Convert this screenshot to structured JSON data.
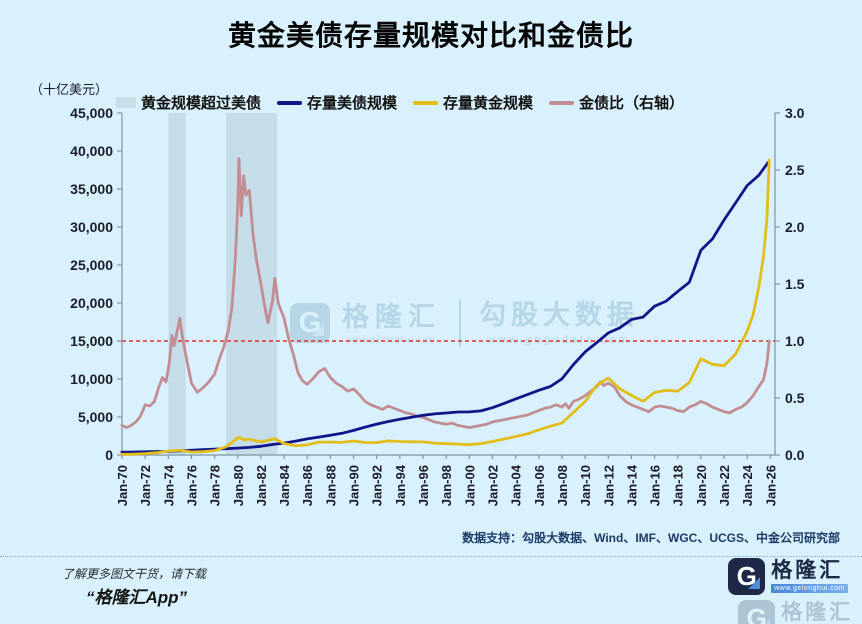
{
  "title": "黄金美债存量规模对比和金债比",
  "legend": [
    {
      "label": "黄金规模超过美债",
      "type": "band",
      "color": "#cbdde7"
    },
    {
      "label": "存量美债规模",
      "type": "line",
      "color": "#14148a"
    },
    {
      "label": "存量黄金规模",
      "type": "line",
      "color": "#e3bd1a"
    },
    {
      "label": "金债比（右轴）",
      "type": "line",
      "color": "#c18d92"
    }
  ],
  "watermark": {
    "brand": "格隆汇",
    "brand_url": "www.gelonghui.com",
    "partner": "勾股大数据",
    "partner_url": "www.gogudata.com"
  },
  "footer": {
    "data_support": "数据支持：勾股大数据、Wind、IMF、WGC、UCGS、中金公司研究部",
    "promo_line1": "了解更多图文干货，请下载",
    "promo_line2": "“格隆汇App”",
    "logo_brand": "格隆汇",
    "logo_url": "www.gelonghui.com"
  },
  "colors": {
    "background": "#d8f1fc",
    "us_debt_line": "#14148a",
    "gold_line": "#e3bd1a",
    "ratio_line": "#c18d92",
    "reference_line": "#e2302e",
    "shaded_band": "rgba(148,176,190,0.3)",
    "axis": "#7d95a3"
  },
  "chart_data": {
    "type": "line",
    "title": "黄金美债存量规模对比和金债比",
    "left_axis": {
      "label": "（十亿美元）",
      "min": 0,
      "max": 45000,
      "step": 5000,
      "ticks": [
        "0",
        "5,000",
        "10,000",
        "15,000",
        "20,000",
        "25,000",
        "30,000",
        "35,000",
        "40,000",
        "45,000"
      ]
    },
    "right_axis": {
      "label": "金债比",
      "min": 0.0,
      "max": 3.0,
      "step": 0.5,
      "ticks": [
        "0.0",
        "0.5",
        "1.0",
        "1.5",
        "2.0",
        "2.5",
        "3.0"
      ]
    },
    "x_axis": {
      "start_year": 1970,
      "end_year": 2026,
      "tick_interval_years": 2,
      "ticks": [
        "Jan-70",
        "Jan-72",
        "Jan-74",
        "Jan-76",
        "Jan-78",
        "Jan-80",
        "Jan-82",
        "Jan-84",
        "Jan-86",
        "Jan-88",
        "Jan-90",
        "Jan-92",
        "Jan-94",
        "Jan-96",
        "Jan-98",
        "Jan-00",
        "Jan-02",
        "Jan-04",
        "Jan-06",
        "Jan-08",
        "Jan-10",
        "Jan-12",
        "Jan-14",
        "Jan-16",
        "Jan-18",
        "Jan-20",
        "Jan-22",
        "Jan-24",
        "Jan-26"
      ]
    },
    "reference_line": {
      "axis": "right",
      "value": 1.0,
      "color": "#e2302e",
      "style": "dashed"
    },
    "shaded_bands": {
      "label": "黄金规模超过美债",
      "color": "rgba(148,176,190,0.3)",
      "ranges": [
        [
          1974.0,
          1975.5
        ],
        [
          1979.0,
          1983.4
        ]
      ]
    },
    "grid": false,
    "legend_position": "top",
    "series": [
      {
        "name": "存量美债规模",
        "axis": "left",
        "color": "#14148a",
        "unit": "十亿美元",
        "points": [
          [
            1970,
            371
          ],
          [
            1971,
            398
          ],
          [
            1972,
            427
          ],
          [
            1973,
            458
          ],
          [
            1974,
            475
          ],
          [
            1975,
            533
          ],
          [
            1976,
            620
          ],
          [
            1977,
            699
          ],
          [
            1978,
            772
          ],
          [
            1979,
            827
          ],
          [
            1980,
            908
          ],
          [
            1981,
            998
          ],
          [
            1982,
            1142
          ],
          [
            1983,
            1377
          ],
          [
            1984,
            1572
          ],
          [
            1985,
            1823
          ],
          [
            1986,
            2125
          ],
          [
            1987,
            2350
          ],
          [
            1988,
            2602
          ],
          [
            1989,
            2857
          ],
          [
            1990,
            3233
          ],
          [
            1991,
            3665
          ],
          [
            1992,
            4065
          ],
          [
            1993,
            4411
          ],
          [
            1994,
            4693
          ],
          [
            1995,
            4974
          ],
          [
            1996,
            5225
          ],
          [
            1997,
            5413
          ],
          [
            1998,
            5526
          ],
          [
            1999,
            5656
          ],
          [
            2000,
            5674
          ],
          [
            2001,
            5807
          ],
          [
            2002,
            6228
          ],
          [
            2003,
            6783
          ],
          [
            2004,
            7379
          ],
          [
            2005,
            7933
          ],
          [
            2006,
            8507
          ],
          [
            2007,
            9008
          ],
          [
            2008,
            10025
          ],
          [
            2009,
            11910
          ],
          [
            2010,
            13562
          ],
          [
            2011,
            14790
          ],
          [
            2012,
            16066
          ],
          [
            2013,
            16738
          ],
          [
            2014,
            17824
          ],
          [
            2015,
            18151
          ],
          [
            2016,
            19573
          ],
          [
            2017,
            20245
          ],
          [
            2018,
            21516
          ],
          [
            2019,
            22719
          ],
          [
            2020,
            26945
          ],
          [
            2021,
            28429
          ],
          [
            2022,
            30929
          ],
          [
            2023,
            33167
          ],
          [
            2024,
            35465
          ],
          [
            2025,
            36800
          ],
          [
            2025.8,
            38500
          ]
        ]
      },
      {
        "name": "存量黄金规模",
        "axis": "left",
        "color": "#e3bd1a",
        "unit": "十亿美元",
        "points": [
          [
            1970,
            95
          ],
          [
            1971,
            110
          ],
          [
            1972,
            185
          ],
          [
            1973,
            300
          ],
          [
            1974,
            520
          ],
          [
            1975,
            620
          ],
          [
            1976,
            390
          ],
          [
            1977,
            430
          ],
          [
            1978,
            580
          ],
          [
            1979,
            1080
          ],
          [
            1980.1,
            2360
          ],
          [
            1980.5,
            2000
          ],
          [
            1981,
            2080
          ],
          [
            1982,
            1710
          ],
          [
            1983.2,
            2150
          ],
          [
            1984,
            1500
          ],
          [
            1985,
            1230
          ],
          [
            1986,
            1330
          ],
          [
            1987,
            1700
          ],
          [
            1988,
            1700
          ],
          [
            1989,
            1660
          ],
          [
            1990,
            1840
          ],
          [
            1991,
            1650
          ],
          [
            1992,
            1630
          ],
          [
            1993,
            1850
          ],
          [
            1994,
            1780
          ],
          [
            1995,
            1740
          ],
          [
            1996,
            1720
          ],
          [
            1997,
            1570
          ],
          [
            1998,
            1490
          ],
          [
            1999,
            1440
          ],
          [
            2000,
            1360
          ],
          [
            2001,
            1500
          ],
          [
            2002,
            1780
          ],
          [
            2003,
            2100
          ],
          [
            2004,
            2440
          ],
          [
            2005,
            2780
          ],
          [
            2006,
            3320
          ],
          [
            2007,
            3790
          ],
          [
            2008,
            4210
          ],
          [
            2009,
            5600
          ],
          [
            2010,
            7050
          ],
          [
            2011,
            9170
          ],
          [
            2012,
            10120
          ],
          [
            2013,
            8700
          ],
          [
            2014,
            7840
          ],
          [
            2015,
            7080
          ],
          [
            2016,
            8220
          ],
          [
            2017,
            8500
          ],
          [
            2018,
            8390
          ],
          [
            2019,
            9540
          ],
          [
            2020,
            12660
          ],
          [
            2021,
            11940
          ],
          [
            2022,
            11750
          ],
          [
            2023,
            13270
          ],
          [
            2024,
            16300
          ],
          [
            2024.5,
            18400
          ],
          [
            2025,
            22100
          ],
          [
            2025.4,
            26000
          ],
          [
            2025.7,
            31000
          ],
          [
            2025.9,
            38800
          ]
        ]
      },
      {
        "name": "金债比（右轴）",
        "axis": "right",
        "color": "#c18d92",
        "unit": "ratio",
        "points": [
          [
            1970,
            0.26
          ],
          [
            1970.4,
            0.24
          ],
          [
            1970.8,
            0.26
          ],
          [
            1971.2,
            0.29
          ],
          [
            1971.6,
            0.34
          ],
          [
            1972,
            0.44
          ],
          [
            1972.4,
            0.43
          ],
          [
            1972.8,
            0.47
          ],
          [
            1973.2,
            0.6
          ],
          [
            1973.5,
            0.68
          ],
          [
            1973.8,
            0.64
          ],
          [
            1974.1,
            0.82
          ],
          [
            1974.3,
            1.05
          ],
          [
            1974.5,
            0.96
          ],
          [
            1974.8,
            1.1
          ],
          [
            1975,
            1.2
          ],
          [
            1975.2,
            1.05
          ],
          [
            1975.5,
            0.88
          ],
          [
            1976,
            0.63
          ],
          [
            1976.5,
            0.55
          ],
          [
            1977,
            0.59
          ],
          [
            1977.5,
            0.64
          ],
          [
            1978,
            0.71
          ],
          [
            1978.4,
            0.84
          ],
          [
            1978.8,
            0.95
          ],
          [
            1979.2,
            1.1
          ],
          [
            1979.5,
            1.3
          ],
          [
            1979.8,
            1.75
          ],
          [
            1980,
            2.2
          ],
          [
            1980.1,
            2.6
          ],
          [
            1980.3,
            2.1
          ],
          [
            1980.5,
            2.45
          ],
          [
            1980.7,
            2.28
          ],
          [
            1981,
            2.32
          ],
          [
            1981.3,
            1.95
          ],
          [
            1981.6,
            1.72
          ],
          [
            1982,
            1.5
          ],
          [
            1982.3,
            1.32
          ],
          [
            1982.6,
            1.16
          ],
          [
            1983,
            1.35
          ],
          [
            1983.2,
            1.55
          ],
          [
            1983.5,
            1.33
          ],
          [
            1984,
            1.2
          ],
          [
            1984.4,
            1.02
          ],
          [
            1984.8,
            0.88
          ],
          [
            1985.2,
            0.72
          ],
          [
            1985.6,
            0.65
          ],
          [
            1986,
            0.62
          ],
          [
            1986.5,
            0.67
          ],
          [
            1987,
            0.73
          ],
          [
            1987.5,
            0.76
          ],
          [
            1988,
            0.68
          ],
          [
            1988.5,
            0.63
          ],
          [
            1989,
            0.6
          ],
          [
            1989.5,
            0.56
          ],
          [
            1990,
            0.58
          ],
          [
            1990.5,
            0.53
          ],
          [
            1991,
            0.47
          ],
          [
            1991.5,
            0.44
          ],
          [
            1992,
            0.42
          ],
          [
            1992.5,
            0.4
          ],
          [
            1993,
            0.43
          ],
          [
            1993.5,
            0.41
          ],
          [
            1994,
            0.39
          ],
          [
            1994.5,
            0.37
          ],
          [
            1995,
            0.36
          ],
          [
            1995.5,
            0.34
          ],
          [
            1996,
            0.33
          ],
          [
            1996.5,
            0.31
          ],
          [
            1997,
            0.29
          ],
          [
            1997.5,
            0.28
          ],
          [
            1998,
            0.27
          ],
          [
            1998.5,
            0.28
          ],
          [
            1999,
            0.26
          ],
          [
            1999.5,
            0.25
          ],
          [
            2000,
            0.24
          ],
          [
            2000.5,
            0.25
          ],
          [
            2001,
            0.26
          ],
          [
            2001.5,
            0.27
          ],
          [
            2002,
            0.29
          ],
          [
            2002.5,
            0.3
          ],
          [
            2003,
            0.31
          ],
          [
            2003.5,
            0.32
          ],
          [
            2004,
            0.33
          ],
          [
            2004.5,
            0.34
          ],
          [
            2005,
            0.35
          ],
          [
            2005.5,
            0.37
          ],
          [
            2006,
            0.39
          ],
          [
            2006.5,
            0.41
          ],
          [
            2007,
            0.42
          ],
          [
            2007.5,
            0.44
          ],
          [
            2008,
            0.42
          ],
          [
            2008.3,
            0.45
          ],
          [
            2008.6,
            0.41
          ],
          [
            2009,
            0.47
          ],
          [
            2009.5,
            0.49
          ],
          [
            2010,
            0.52
          ],
          [
            2010.5,
            0.56
          ],
          [
            2011,
            0.6
          ],
          [
            2011.3,
            0.64
          ],
          [
            2011.6,
            0.61
          ],
          [
            2012,
            0.63
          ],
          [
            2012.5,
            0.6
          ],
          [
            2013,
            0.52
          ],
          [
            2013.5,
            0.47
          ],
          [
            2014,
            0.44
          ],
          [
            2014.5,
            0.42
          ],
          [
            2015,
            0.4
          ],
          [
            2015.5,
            0.38
          ],
          [
            2016,
            0.42
          ],
          [
            2016.5,
            0.43
          ],
          [
            2017,
            0.42
          ],
          [
            2017.5,
            0.41
          ],
          [
            2018,
            0.39
          ],
          [
            2018.5,
            0.38
          ],
          [
            2019,
            0.42
          ],
          [
            2019.5,
            0.44
          ],
          [
            2020,
            0.47
          ],
          [
            2020.5,
            0.45
          ],
          [
            2021,
            0.42
          ],
          [
            2021.5,
            0.4
          ],
          [
            2022,
            0.38
          ],
          [
            2022.5,
            0.37
          ],
          [
            2023,
            0.4
          ],
          [
            2023.5,
            0.42
          ],
          [
            2024,
            0.46
          ],
          [
            2024.5,
            0.52
          ],
          [
            2025,
            0.6
          ],
          [
            2025.4,
            0.66
          ],
          [
            2025.7,
            0.8
          ],
          [
            2025.9,
            1.0
          ]
        ]
      }
    ]
  }
}
